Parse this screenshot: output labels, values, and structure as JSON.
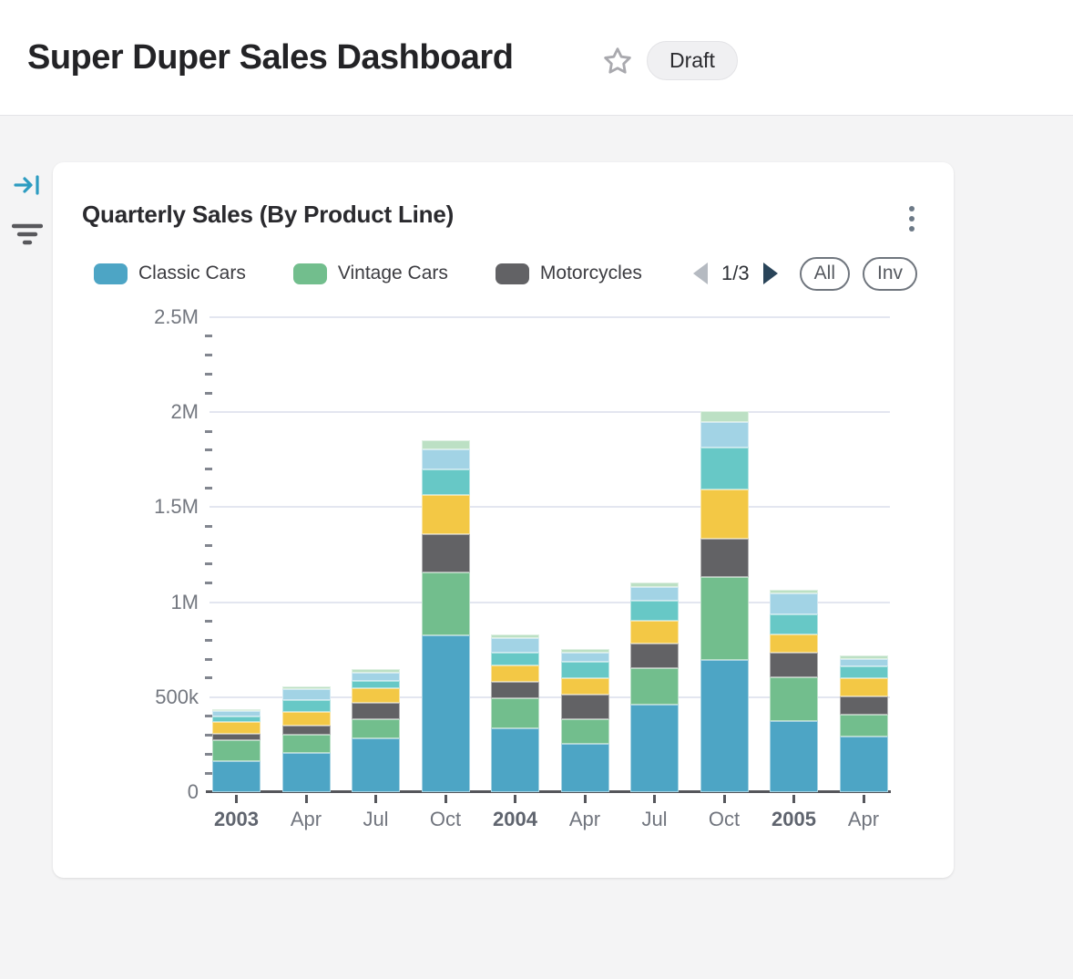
{
  "header": {
    "title": "Super Duper Sales Dashboard",
    "status_badge": "Draft"
  },
  "rail": {
    "icons": [
      "collapse-right-icon",
      "filter-icon"
    ]
  },
  "card": {
    "title": "Quarterly Sales (By Product Line)",
    "legend_pager": {
      "label": "1/3"
    },
    "buttons": {
      "all": "All",
      "inverse": "Inv"
    }
  },
  "colors": {
    "accent_icon_blue": "#2d9cc1",
    "rail_icon_gray": "#58585c",
    "gridline": "#e3e6f0",
    "axis": "#55565b",
    "pager_prev": "#b5bac1",
    "pager_next": "#294459"
  },
  "chart_data": {
    "type": "bar",
    "stacked": true,
    "title": "Quarterly Sales (By Product Line)",
    "categories": [
      "2003",
      "Apr",
      "Jul",
      "Oct",
      "2004",
      "Apr",
      "Jul",
      "Oct",
      "2005",
      "Apr"
    ],
    "bold_category_indices": [
      0,
      4,
      8
    ],
    "series": [
      {
        "name": "Classic Cars",
        "color": "#4da5c5",
        "in_legend": true,
        "values": [
          163000,
          206000,
          285000,
          826000,
          334000,
          256000,
          462000,
          694000,
          374000,
          294000
        ]
      },
      {
        "name": "Vintage Cars",
        "color": "#72be8d",
        "in_legend": true,
        "values": [
          110000,
          96000,
          100000,
          332000,
          160000,
          128000,
          192000,
          440000,
          232000,
          112000
        ]
      },
      {
        "name": "Motorcycles",
        "color": "#626265",
        "in_legend": true,
        "values": [
          34000,
          48000,
          83000,
          200000,
          88000,
          128000,
          128000,
          200000,
          128000,
          96000
        ]
      },
      {
        "name": "(unlabeled yellow series)",
        "color": "#f3c845",
        "in_legend": false,
        "values": [
          62000,
          72000,
          78000,
          208000,
          85000,
          88000,
          120000,
          260000,
          96000,
          96000
        ]
      },
      {
        "name": "(unlabeled teal series)",
        "color": "#67c8c6",
        "in_legend": false,
        "values": [
          29000,
          63000,
          38000,
          132000,
          67000,
          88000,
          104000,
          220000,
          108000,
          64000
        ]
      },
      {
        "name": "(unlabeled light-blue series)",
        "color": "#a2d3e5",
        "in_legend": false,
        "values": [
          29000,
          57000,
          45000,
          108000,
          76000,
          48000,
          72000,
          136000,
          108000,
          40000
        ]
      },
      {
        "name": "(unlabeled light-green series)",
        "color": "#bce0c4",
        "in_legend": false,
        "values": [
          10000,
          16000,
          20000,
          48000,
          20000,
          16000,
          28000,
          56000,
          20000,
          16000
        ]
      }
    ],
    "ylim": [
      0,
      2500000
    ],
    "y_tick_step": 500000,
    "y_minor_step": 100000,
    "y_tick_labels": [
      "0",
      "500k",
      "1M",
      "1.5M",
      "2M",
      "2.5M"
    ],
    "grid": true,
    "legend_position": "top",
    "legend_note": "legend paginated, page 1 of 3 visible"
  }
}
